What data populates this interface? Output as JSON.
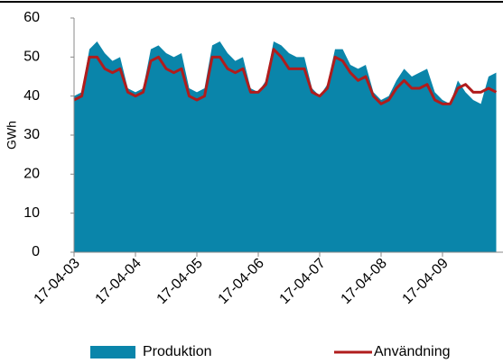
{
  "chart_data": {
    "type": "area",
    "y_label": "GWh",
    "categories": [
      "17-04-03",
      null,
      null,
      null,
      null,
      null,
      null,
      null,
      "17-04-04",
      null,
      null,
      null,
      null,
      null,
      null,
      null,
      "17-04-05",
      null,
      null,
      null,
      null,
      null,
      null,
      null,
      "17-04-06",
      null,
      null,
      null,
      null,
      null,
      null,
      null,
      "17-04-07",
      null,
      null,
      null,
      null,
      null,
      null,
      null,
      "17-04-08",
      null,
      null,
      null,
      null,
      null,
      null,
      null,
      "17-04-09",
      null,
      null,
      null,
      null,
      null,
      null,
      null
    ],
    "series": [
      {
        "name": "Produktion",
        "type": "area",
        "color": "#0a85aa",
        "values": [
          40,
          41,
          52,
          54,
          51,
          49,
          50,
          42,
          41,
          42,
          52,
          53,
          51,
          50,
          51,
          42,
          41,
          42,
          53,
          54,
          51,
          49,
          50,
          42,
          41,
          44,
          54,
          53,
          51,
          50,
          50,
          42,
          40,
          43,
          52,
          52,
          48,
          47,
          48,
          41,
          39,
          40,
          44,
          47,
          45,
          46,
          47,
          41,
          39,
          38,
          44,
          41,
          39,
          38,
          45,
          46
        ]
      },
      {
        "name": "Användning",
        "type": "line",
        "color": "#b01c1c",
        "values": [
          39,
          40,
          50,
          50,
          47,
          46,
          47,
          41,
          40,
          41,
          49,
          50,
          47,
          46,
          47,
          40,
          39,
          40,
          50,
          50,
          47,
          46,
          47,
          41,
          41,
          43,
          52,
          50,
          47,
          47,
          47,
          41,
          40,
          42,
          50,
          49,
          46,
          44,
          45,
          40,
          38,
          39,
          42,
          44,
          42,
          42,
          43,
          39,
          38,
          38,
          42,
          43,
          41,
          41,
          42,
          41
        ]
      }
    ],
    "ylim": [
      0,
      60
    ],
    "yticks": [
      0,
      10,
      20,
      30,
      40,
      50,
      60
    ],
    "grid": false
  }
}
